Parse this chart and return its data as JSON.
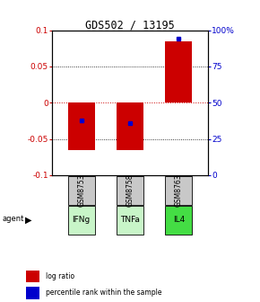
{
  "title": "GDS502 / 13195",
  "bar_categories": [
    "GSM8753",
    "GSM8758",
    "GSM8763"
  ],
  "agents": [
    "IFNg",
    "TNFa",
    "IL4"
  ],
  "log_ratios": [
    -0.065,
    -0.065,
    0.085
  ],
  "percentile_rank_values": [
    -0.024,
    -0.028,
    0.088
  ],
  "ylim": [
    -0.1,
    0.1
  ],
  "yticks_left": [
    -0.1,
    -0.05,
    0,
    0.05,
    0.1
  ],
  "yticks_right_pct": [
    0,
    25,
    50,
    75,
    100
  ],
  "ytick_labels_left": [
    "-0.1",
    "-0.05",
    "0",
    "0.05",
    "0.1"
  ],
  "ytick_labels_right": [
    "0",
    "25",
    "50",
    "75",
    "100%"
  ],
  "red_color": "#cc0000",
  "blue_color": "#0000cc",
  "bar_bg_color": "#c8c8c8",
  "agent_bg_colors": [
    "#c8f5c8",
    "#c8f5c8",
    "#44dd44"
  ],
  "legend_label_red": "log ratio",
  "legend_label_blue": "percentile rank within the sample",
  "bar_width": 0.55,
  "zero_line_color": "#cc0000",
  "agent_label": "agent"
}
